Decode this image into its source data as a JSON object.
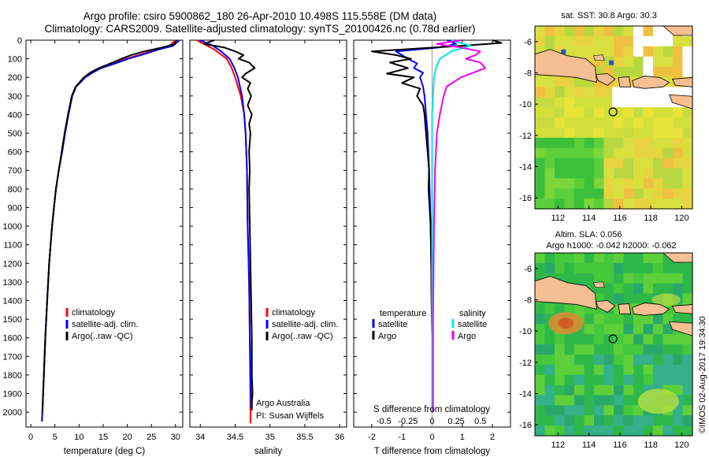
{
  "title": {
    "line1": "Argo profile: csiro 5900862_180 26-Apr-2010 10.498S 115.558E (DM data)",
    "line2": "Climatology: CARS2009. Satellite-adjusted climatology: synTS_20100426.nc (0.78d earlier)"
  },
  "colors": {
    "climatology": "#ff0000",
    "satellite": "#0000ff",
    "argo": "#000000",
    "sat_s": "#00e5ee",
    "argo_s": "#ee00ee",
    "land": "#f5bf93"
  },
  "depth_ticks": [
    "0",
    "100",
    "200",
    "300",
    "400",
    "500",
    "600",
    "700",
    "800",
    "900",
    "1000",
    "1100",
    "1200",
    "1300",
    "1400",
    "1500",
    "1600",
    "1700",
    "1800",
    "1900",
    "2000"
  ],
  "chart_data": [
    {
      "type": "line",
      "name": "temperature",
      "xlabel": "temperature (deg C)",
      "ylabel": "depth",
      "xlim": [
        -1,
        31.5
      ],
      "ylim": [
        2080,
        0
      ],
      "xticks": [
        "0",
        "5",
        "10",
        "15",
        "20",
        "25",
        "30"
      ],
      "legend": [
        "climatology",
        "satellite-adj. clim.",
        "Argo(..raw -QC)"
      ],
      "series": [
        {
          "name": "climatology",
          "depth": [
            0,
            30,
            50,
            75,
            100,
            125,
            150,
            175,
            200,
            250,
            300,
            400,
            500,
            600,
            700,
            800,
            900,
            1000,
            1200,
            1400,
            1600,
            1800,
            2000,
            2050
          ],
          "values": [
            30,
            28.8,
            26,
            23,
            19.8,
            17,
            14.2,
            12.6,
            11.1,
            9.3,
            8.5,
            7.8,
            7.1,
            6.5,
            5.8,
            5.2,
            4.8,
            4.4,
            3.8,
            3.4,
            3.0,
            2.7,
            2.4,
            2.3
          ]
        },
        {
          "name": "satellite-adj. clim.",
          "depth": [
            0,
            30,
            50,
            75,
            100,
            125,
            150,
            175,
            200,
            250,
            300,
            400,
            500,
            600,
            700,
            800,
            900,
            1000,
            1200,
            1400,
            1600,
            1800,
            2000,
            2050
          ],
          "values": [
            30.8,
            29.5,
            26.5,
            23.5,
            20.2,
            17.5,
            14.6,
            12.8,
            11.3,
            9.4,
            8.6,
            7.8,
            7.1,
            6.5,
            5.8,
            5.2,
            4.8,
            4.4,
            3.8,
            3.4,
            3.0,
            2.7,
            2.4,
            2.3
          ]
        },
        {
          "name": "Argo",
          "depth": [
            0,
            20,
            40,
            60,
            80,
            100,
            125,
            150,
            175,
            200,
            250,
            300,
            400,
            500,
            600,
            700,
            800,
            900,
            1000,
            1200,
            1400,
            1600,
            1800,
            2000
          ],
          "values": [
            30.2,
            29.8,
            27.2,
            23.5,
            20.8,
            18.8,
            16.5,
            14.1,
            12.3,
            11.0,
            9.3,
            8.5,
            7.7,
            7.0,
            6.4,
            5.8,
            5.2,
            4.8,
            4.4,
            3.8,
            3.4,
            3.0,
            2.7,
            2.4
          ]
        }
      ]
    },
    {
      "type": "line",
      "name": "salinity",
      "xlabel": "salinity",
      "ylabel": "depth",
      "xlim": [
        33.85,
        36.1
      ],
      "ylim": [
        2080,
        0
      ],
      "xticks": [
        "34",
        "34.5",
        "35",
        "35.5",
        "36"
      ],
      "legend": [
        "climatology",
        "satellite-adj. clim.",
        "Argo(..raw -QC)"
      ],
      "annotation": [
        "Argo Australia",
        "PI: Susan Wijffels"
      ],
      "series": [
        {
          "name": "climatology",
          "depth": [
            0,
            50,
            100,
            150,
            200,
            300,
            400,
            500,
            700,
            1000,
            1300,
            1600,
            2000,
            2060
          ],
          "values": [
            33.95,
            34.2,
            34.38,
            34.45,
            34.5,
            34.58,
            34.63,
            34.65,
            34.67,
            34.68,
            34.7,
            34.71,
            34.72,
            34.72
          ]
        },
        {
          "name": "satellite-adj. clim.",
          "depth": [
            0,
            30,
            60,
            100,
            150,
            200,
            300,
            400,
            500,
            700,
            1000,
            1300,
            1600,
            1800,
            1980
          ],
          "values": [
            34.0,
            34.18,
            34.3,
            34.42,
            34.49,
            34.54,
            34.6,
            34.63,
            34.65,
            34.67,
            34.68,
            34.7,
            34.71,
            34.72,
            34.73
          ]
        },
        {
          "name": "Argo",
          "depth": [
            0,
            20,
            40,
            60,
            80,
            100,
            120,
            150,
            180,
            200,
            230,
            260,
            300,
            350,
            400,
            450,
            500,
            600,
            700,
            800,
            1000,
            1200,
            1400,
            1600,
            1800,
            1900,
            1950,
            1990
          ],
          "values": [
            34.2,
            34.05,
            34.35,
            34.5,
            34.62,
            34.55,
            34.7,
            34.78,
            34.65,
            34.6,
            34.72,
            34.68,
            34.73,
            34.68,
            34.74,
            34.7,
            34.72,
            34.7,
            34.71,
            34.7,
            34.71,
            34.72,
            34.73,
            34.74,
            34.74,
            34.75,
            34.74,
            34.74
          ]
        }
      ]
    },
    {
      "type": "line",
      "name": "differences",
      "xlabel": "T difference from climatology",
      "xlabel_top": "S difference from climatology",
      "xlim": [
        -2.6,
        2.6
      ],
      "ylim": [
        2080,
        0
      ],
      "xticks": [
        "-2",
        "-1",
        "0",
        "1",
        "2"
      ],
      "s_ticks": [
        "-0.5",
        "-0.25",
        "0",
        "0.25",
        "0.5"
      ],
      "legend_t": [
        "temperature",
        "satellite",
        "Argo"
      ],
      "legend_s": [
        "salinity",
        "satellite",
        "Argo"
      ],
      "series": [
        {
          "name": "T satellite",
          "depth": [
            0,
            20,
            40,
            60,
            80,
            100,
            125,
            150,
            175,
            200,
            250,
            300,
            400,
            500,
            700,
            1000,
            1500,
            2000
          ],
          "values": [
            0.5,
            0.8,
            0.2,
            -1.2,
            -1.0,
            -0.8,
            -0.5,
            -0.6,
            -0.3,
            -0.4,
            -0.3,
            -0.25,
            -0.2,
            -0.15,
            -0.1,
            -0.05,
            0.0,
            0.0
          ]
        },
        {
          "name": "T Argo",
          "depth": [
            0,
            15,
            30,
            45,
            60,
            80,
            100,
            120,
            150,
            180,
            200,
            230,
            260,
            300,
            350,
            400,
            500,
            600,
            700,
            800,
            900,
            1000,
            1200,
            1400,
            1600,
            1800,
            2000
          ],
          "values": [
            2.0,
            2.3,
            1.0,
            -0.5,
            -2.0,
            -1.2,
            -0.7,
            -1.4,
            -0.8,
            -1.5,
            -0.6,
            -1.0,
            -0.4,
            -0.5,
            -0.3,
            -0.25,
            -0.2,
            -0.15,
            -0.1,
            -0.12,
            -0.08,
            -0.05,
            -0.03,
            -0.02,
            0.0,
            0.0,
            0.0
          ]
        },
        {
          "name": "S satellite",
          "depth": [
            0,
            30,
            60,
            100,
            150,
            200,
            300,
            400,
            500,
            700,
            1000,
            1500,
            2000
          ],
          "values": [
            0.2,
            0.4,
            0.2,
            0.08,
            0.04,
            0.02,
            0.01,
            0.0,
            0.0,
            0.0,
            0.0,
            0.0,
            0.0
          ]
        },
        {
          "name": "S Argo",
          "depth": [
            0,
            20,
            40,
            60,
            80,
            100,
            120,
            150,
            200,
            250,
            300,
            400,
            500,
            700,
            1000,
            1500,
            2000
          ],
          "values": [
            0.3,
            0.05,
            0.3,
            0.5,
            0.45,
            0.35,
            0.5,
            0.55,
            0.3,
            0.15,
            0.12,
            0.08,
            0.05,
            0.03,
            0.02,
            0.01,
            0.01
          ]
        }
      ]
    }
  ],
  "map_top": {
    "title": "sat. SST: 30.8  Argo: 30.3",
    "yticks": [
      "-6",
      "-8",
      "-10",
      "-12",
      "-14",
      "-16"
    ],
    "xticks": [
      "112",
      "114",
      "116",
      "118",
      "120"
    ],
    "lon": [
      110.5,
      120.7
    ],
    "lat": [
      -16.7,
      -5.0
    ],
    "float_pos": {
      "lon": 115.558,
      "lat": -10.498
    }
  },
  "map_bottom": {
    "title1": "Altim. SLA: 0.056",
    "title2": "Argo h1000: -0.042  h2000: -0.062",
    "yticks": [
      "-6",
      "-8",
      "-10",
      "-12",
      "-14",
      "-16"
    ],
    "xticks": [
      "112",
      "114",
      "116",
      "118",
      "120"
    ],
    "lon": [
      110.5,
      120.7
    ],
    "lat": [
      -16.7,
      -5.0
    ],
    "float_pos": {
      "lon": 115.558,
      "lat": -10.498
    }
  },
  "credit": "©IMOS 02-Aug-2017 19:34:30"
}
